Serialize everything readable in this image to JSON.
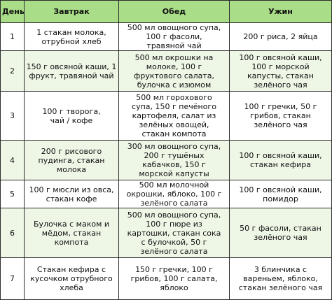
{
  "header": {
    "day": "День",
    "breakfast": "Завтрак",
    "lunch": "Обед",
    "dinner": "Ужин"
  },
  "rows": [
    {
      "day": "1",
      "breakfast": "1 стакан молока,\nотрубной хлеб",
      "lunch": "500 мл овощного супа,\n100 г фасоли,\nтравяной чай",
      "dinner": "200 г риса, 2 яйца"
    },
    {
      "day": "2",
      "breakfast": "150 г овсяной каши, 1\nфрукт, травяной чай",
      "lunch": "500 мл окрошки на\nмолоке, 100 г\nфруктового салата,\nбулочка с изюмом",
      "dinner": "100 г овсяной каши,\n100 г морской\nкапусты, стакан\nзелёного чая"
    },
    {
      "day": "3",
      "breakfast": "100 г творога,\nчай / кофе",
      "lunch": "500 мл горохового\nсупа, 150 г печёного\nкартофеля, салат из\nзелёных овощей,\nстакан компота",
      "dinner": "100 г гречки, 50 г\nгрибов, стакан\nзелёного чая"
    },
    {
      "day": "4",
      "breakfast": "200 г рисового\nпудинга, стакан\nмолока",
      "lunch": "300 мл овощного супа,\n200 г тушёных\nкабачков, 150 г\nморской капусты",
      "dinner": "100 г овсяной каши,\nстакан кефира"
    },
    {
      "day": "5",
      "breakfast": "100 г мюсли из овса,\nстакан кофе",
      "lunch": "500 мл молочной\nокрошки, яблоко, 100 г\nзелёного салата",
      "dinner": "100 г овсяной каши,\nпомидор"
    },
    {
      "day": "6",
      "breakfast": "Булочка с маком и\nмёдом, стакан\nкомпота",
      "lunch": "500 мл овощного супа,\n100 г пюре из\nкартошки, стакан сока\nс булочкой, 50 г\nзелёного салата",
      "dinner": "50 г фасоли, стакан\nзелёного чая"
    },
    {
      "day": "7",
      "breakfast": "Стакан кефира с\nкусочком отрубного\nхлеба",
      "lunch": "150 г гречки, 100 г\nгрибов, 100 г салата,\nяблоко",
      "dinner": "3 блинчика с\nвареньем, яблоко,\nстакан зелёного чая"
    }
  ]
}
